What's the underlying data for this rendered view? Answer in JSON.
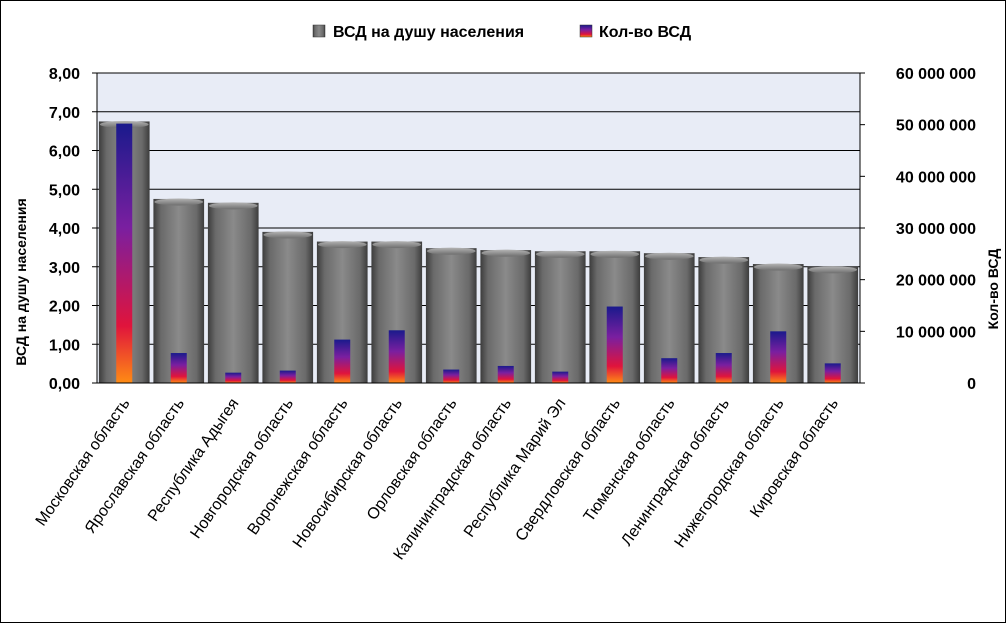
{
  "chart_data": {
    "type": "bar",
    "categories": [
      "Московская область",
      "Ярославская область",
      "Республика Адыгея",
      "Новгородская область",
      "Воронежская область",
      "Новосибирская область",
      "Орловская область",
      "Калининградская область",
      "Республика Марий Эл",
      "Свердловская область",
      "Тюменская область",
      "Ленинградская область",
      "Нижегородская область",
      "Кировская область"
    ],
    "series": [
      {
        "name": "ВСД на душу населения",
        "axis": "left",
        "color": "#7f7f7f",
        "values": [
          6.75,
          4.75,
          4.65,
          3.9,
          3.65,
          3.65,
          3.48,
          3.43,
          3.4,
          3.4,
          3.35,
          3.25,
          3.07,
          3.0
        ]
      },
      {
        "name": "Кол-во ВСД",
        "axis": "right",
        "color": "#7a1fa0",
        "values": [
          50200000,
          5800000,
          2000000,
          2400000,
          8400000,
          10200000,
          2600000,
          3300000,
          2200000,
          14800000,
          4800000,
          5800000,
          10000000,
          3800000
        ]
      }
    ],
    "y_left": {
      "label": "ВСД на душу населения",
      "min": 0,
      "max": 8,
      "ticks": [
        "0,00",
        "1,00",
        "2,00",
        "3,00",
        "4,00",
        "5,00",
        "6,00",
        "7,00",
        "8,00"
      ]
    },
    "y_right": {
      "label": "Кол-во ВСД",
      "min": 0,
      "max": 60000000,
      "ticks": [
        "0",
        "10 000 000",
        "20 000 000",
        "30 000 000",
        "40 000 000",
        "50 000 000",
        "60 000 000"
      ]
    },
    "grid": true,
    "legend": "top-center",
    "plot_background": "#e8ecf6"
  }
}
